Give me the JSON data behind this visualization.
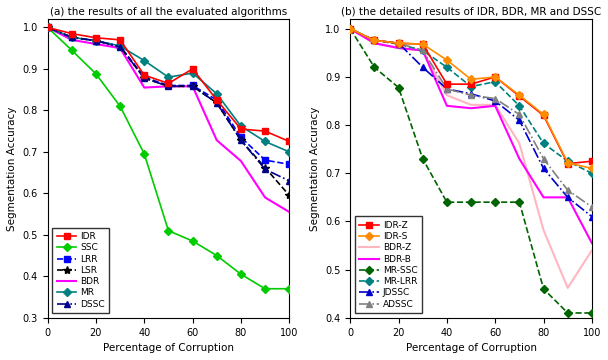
{
  "panel_a": {
    "title": "(a) the results of all the evaluated algorithms",
    "xlabel": "Percentage of Corruption",
    "ylabel": "Segmentation Accuracy",
    "ylim": [
      0.3,
      1.02
    ],
    "xlim": [
      0,
      100
    ],
    "yticks": [
      0.3,
      0.4,
      0.5,
      0.6,
      0.7,
      0.8,
      0.9,
      1.0
    ],
    "xticks": [
      0,
      20,
      40,
      60,
      80,
      100
    ],
    "series": {
      "IDR": {
        "x": [
          0,
          10,
          20,
          30,
          40,
          50,
          60,
          70,
          80,
          90,
          100
        ],
        "y": [
          1.0,
          0.985,
          0.975,
          0.97,
          0.885,
          0.865,
          0.9,
          0.825,
          0.755,
          0.75,
          0.725
        ],
        "color": "#ff0000",
        "linestyle": "-",
        "marker": "s",
        "markersize": 4,
        "linewidth": 1.2,
        "zorder": 5
      },
      "SSC": {
        "x": [
          0,
          10,
          20,
          30,
          40,
          50,
          60,
          70,
          80,
          90,
          100
        ],
        "y": [
          1.0,
          0.945,
          0.888,
          0.81,
          0.695,
          0.51,
          0.485,
          0.45,
          0.405,
          0.37,
          0.37
        ],
        "color": "#00cc00",
        "linestyle": "-",
        "marker": "D",
        "markersize": 4,
        "linewidth": 1.2,
        "zorder": 4
      },
      "LRR": {
        "x": [
          0,
          10,
          20,
          30,
          40,
          50,
          60,
          70,
          80,
          90,
          100
        ],
        "y": [
          1.0,
          0.976,
          0.968,
          0.955,
          0.88,
          0.86,
          0.86,
          0.825,
          0.735,
          0.68,
          0.67
        ],
        "color": "#0000ff",
        "linestyle": "--",
        "marker": "s",
        "markersize": 4,
        "linewidth": 1.2,
        "zorder": 4
      },
      "LSR": {
        "x": [
          0,
          10,
          20,
          30,
          40,
          50,
          60,
          70,
          80,
          90,
          100
        ],
        "y": [
          1.0,
          0.976,
          0.968,
          0.953,
          0.878,
          0.858,
          0.858,
          0.818,
          0.728,
          0.662,
          0.595
        ],
        "color": "#000000",
        "linestyle": "--",
        "marker": "*",
        "markersize": 6,
        "linewidth": 1.2,
        "zorder": 4
      },
      "BDR": {
        "x": [
          0,
          10,
          20,
          30,
          40,
          50,
          60,
          70,
          80,
          90,
          100
        ],
        "y": [
          1.0,
          0.97,
          0.96,
          0.95,
          0.855,
          0.858,
          0.858,
          0.728,
          0.678,
          0.59,
          0.555
        ],
        "color": "#ff00ff",
        "linestyle": "-",
        "marker": null,
        "markersize": 0,
        "linewidth": 1.5,
        "zorder": 3
      },
      "MR": {
        "x": [
          0,
          10,
          20,
          30,
          40,
          50,
          60,
          70,
          80,
          90,
          100
        ],
        "y": [
          1.0,
          0.976,
          0.968,
          0.955,
          0.92,
          0.88,
          0.89,
          0.84,
          0.762,
          0.725,
          0.7
        ],
        "color": "#008080",
        "linestyle": "-",
        "marker": "D",
        "markersize": 4,
        "linewidth": 1.2,
        "zorder": 4
      },
      "DSSC": {
        "x": [
          0,
          10,
          20,
          30,
          40,
          50,
          60,
          70,
          80,
          90,
          100
        ],
        "y": [
          1.0,
          0.976,
          0.968,
          0.953,
          0.878,
          0.858,
          0.858,
          0.818,
          0.728,
          0.658,
          0.63
        ],
        "color": "#00008b",
        "linestyle": "-.",
        "marker": "^",
        "markersize": 4,
        "linewidth": 1.2,
        "zorder": 4
      }
    }
  },
  "panel_b": {
    "title": "(b) the detailed results of IDR, BDR, MR and DSSC",
    "xlabel": "Percentage of Corruption",
    "ylabel": "Segmentation Accuracy",
    "ylim": [
      0.4,
      1.02
    ],
    "xlim": [
      0,
      100
    ],
    "yticks": [
      0.4,
      0.5,
      0.6,
      0.7,
      0.8,
      0.9,
      1.0
    ],
    "xticks": [
      0,
      20,
      40,
      60,
      80,
      100
    ],
    "series": {
      "IDR-Z": {
        "x": [
          0,
          10,
          20,
          30,
          40,
          50,
          60,
          70,
          80,
          90,
          100
        ],
        "y": [
          1.0,
          0.976,
          0.97,
          0.968,
          0.885,
          0.885,
          0.9,
          0.86,
          0.82,
          0.72,
          0.725
        ],
        "color": "#ff0000",
        "linestyle": "-",
        "marker": "s",
        "markersize": 4,
        "linewidth": 1.2,
        "zorder": 6
      },
      "IDR-S": {
        "x": [
          0,
          10,
          20,
          30,
          40,
          50,
          60,
          70,
          80,
          90,
          100
        ],
        "y": [
          1.0,
          0.976,
          0.97,
          0.968,
          0.935,
          0.895,
          0.9,
          0.862,
          0.822,
          0.722,
          0.71
        ],
        "color": "#ff8c00",
        "linestyle": "-",
        "marker": "D",
        "markersize": 4,
        "linewidth": 1.2,
        "zorder": 6
      },
      "BDR-Z": {
        "x": [
          0,
          10,
          20,
          30,
          40,
          50,
          60,
          70,
          80,
          90,
          100
        ],
        "y": [
          1.0,
          0.97,
          0.96,
          0.955,
          0.862,
          0.842,
          0.842,
          0.762,
          0.582,
          0.462,
          0.54
        ],
        "color": "#ffb6c1",
        "linestyle": "-",
        "marker": null,
        "markersize": 0,
        "linewidth": 1.5,
        "zorder": 3
      },
      "BDR-B": {
        "x": [
          0,
          10,
          20,
          30,
          40,
          50,
          60,
          70,
          80,
          90,
          100
        ],
        "y": [
          1.0,
          0.97,
          0.96,
          0.955,
          0.84,
          0.835,
          0.84,
          0.73,
          0.65,
          0.65,
          0.555
        ],
        "color": "#ff00ff",
        "linestyle": "-",
        "marker": null,
        "markersize": 0,
        "linewidth": 1.5,
        "zorder": 3
      },
      "MR-SSC": {
        "x": [
          0,
          10,
          20,
          30,
          40,
          50,
          60,
          70,
          80,
          90,
          100
        ],
        "y": [
          1.0,
          0.92,
          0.878,
          0.73,
          0.64,
          0.64,
          0.64,
          0.64,
          0.46,
          0.41,
          0.41
        ],
        "color": "#006400",
        "linestyle": "--",
        "marker": "D",
        "markersize": 4,
        "linewidth": 1.2,
        "zorder": 4
      },
      "MR-LRR": {
        "x": [
          0,
          10,
          20,
          30,
          40,
          50,
          60,
          70,
          80,
          90,
          100
        ],
        "y": [
          1.0,
          0.976,
          0.968,
          0.955,
          0.92,
          0.88,
          0.89,
          0.84,
          0.762,
          0.725,
          0.7
        ],
        "color": "#008080",
        "linestyle": "--",
        "marker": "D",
        "markersize": 4,
        "linewidth": 1.2,
        "zorder": 4
      },
      "JDSSC": {
        "x": [
          0,
          10,
          20,
          30,
          40,
          50,
          60,
          70,
          80,
          90,
          100
        ],
        "y": [
          1.0,
          0.976,
          0.97,
          0.92,
          0.875,
          0.865,
          0.85,
          0.81,
          0.71,
          0.65,
          0.61
        ],
        "color": "#0000cd",
        "linestyle": "-.",
        "marker": "^",
        "markersize": 4,
        "linewidth": 1.2,
        "zorder": 4
      },
      "ADSSC": {
        "x": [
          0,
          10,
          20,
          30,
          40,
          50,
          60,
          70,
          80,
          90,
          100
        ],
        "y": [
          1.0,
          0.976,
          0.97,
          0.955,
          0.875,
          0.862,
          0.855,
          0.822,
          0.73,
          0.665,
          0.63
        ],
        "color": "#808080",
        "linestyle": "-.",
        "marker": "^",
        "markersize": 4,
        "linewidth": 1.2,
        "zorder": 4
      }
    }
  }
}
